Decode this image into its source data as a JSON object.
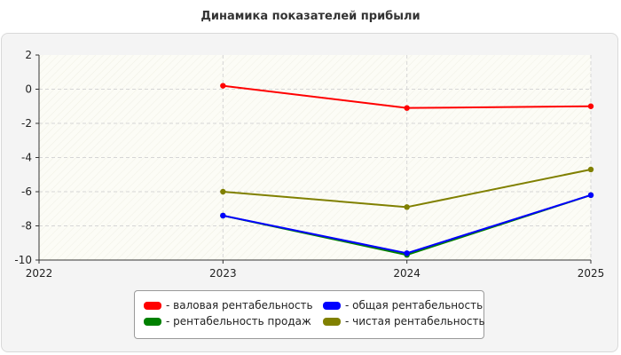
{
  "chart_data": {
    "type": "line",
    "title": "Динамика показателей прибыли",
    "xlabel": "",
    "ylabel": "",
    "x": [
      2022,
      2023,
      2024,
      2025
    ],
    "xticks": [
      "2022",
      "2023",
      "2024",
      "2025"
    ],
    "yticks": [
      "2",
      "0",
      "-2",
      "-4",
      "-6",
      "-8",
      "-10"
    ],
    "ylim": [
      -10,
      2
    ],
    "xlim": [
      2022,
      2025
    ],
    "grid": true,
    "legend_position": "bottom",
    "series": [
      {
        "name": "валовая рентабельность",
        "color": "#ff0000",
        "values": [
          null,
          0.2,
          -1.1,
          -1.0
        ]
      },
      {
        "name": "рентабельность продаж",
        "color": "#008000",
        "values": [
          null,
          -7.4,
          -9.7,
          -6.2
        ]
      },
      {
        "name": "общая рентабельность",
        "color": "#0000ff",
        "values": [
          null,
          -7.4,
          -9.6,
          -6.2
        ]
      },
      {
        "name": "чистая рентабельность",
        "color": "#808000",
        "values": [
          null,
          -6.0,
          -6.9,
          -4.7
        ]
      }
    ]
  }
}
